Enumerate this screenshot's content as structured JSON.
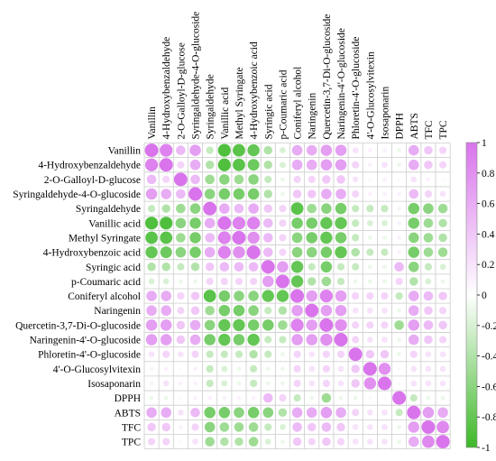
{
  "chart_data": {
    "type": "heatmap",
    "title": "",
    "variables": [
      "Vanillin",
      "4-Hydroxybenzaldehyde",
      "2-O-Galloyl-D-glucose",
      "Syringaldehyde-4-O-glucoside",
      "Syringaldehyde",
      "Vanillic acid",
      "Methyl Syringate",
      "4-Hydroxybenzoic acid",
      "Syringic acid",
      "p-Coumaric acid",
      "Coniferyl alcohol",
      "Naringenin",
      "Quercetin-3,7-Di-O-glucoside",
      "Naringenin-4'-O-glucoside",
      "Phloretin-4'-O-glucoside",
      "4'-O-Glucosylvitexin",
      "Isosaponarin",
      "DPPH",
      "ABTS",
      "TFC",
      "TPC"
    ],
    "values": [
      [
        1,
        0.9,
        0.5,
        0.7,
        -0.3,
        -0.9,
        -0.85,
        -0.8,
        -0.4,
        -0.2,
        0.6,
        0.6,
        0.7,
        0.7,
        0.2,
        0.1,
        0.1,
        -0.1,
        0.6,
        0.4,
        0.3
      ],
      [
        0.9,
        1,
        0.3,
        0.6,
        -0.4,
        -0.9,
        -0.85,
        -0.75,
        -0.4,
        -0.2,
        0.6,
        0.6,
        0.7,
        0.7,
        0.3,
        0.1,
        0.2,
        -0.1,
        0.6,
        0.4,
        0.3
      ],
      [
        0.5,
        0.3,
        1,
        0.5,
        -0.5,
        -0.6,
        -0.5,
        -0.6,
        -0.3,
        -0.1,
        0.3,
        0.3,
        0.4,
        0.4,
        0.2,
        0.05,
        0.1,
        0.05,
        0.2,
        0.1,
        0.05
      ],
      [
        0.7,
        0.6,
        0.5,
        1,
        -0.6,
        -0.7,
        -0.7,
        -0.7,
        -0.4,
        -0.1,
        0.4,
        0.4,
        0.6,
        0.6,
        0.3,
        0.1,
        0.1,
        0.1,
        0.5,
        0.3,
        0.2
      ],
      [
        -0.3,
        -0.4,
        -0.5,
        -0.6,
        1,
        0.6,
        0.5,
        0.6,
        0.4,
        0.3,
        -0.85,
        -0.5,
        -0.6,
        -0.7,
        -0.3,
        -0.3,
        -0.3,
        0.1,
        -0.7,
        -0.6,
        -0.5
      ],
      [
        -0.9,
        -0.9,
        -0.6,
        -0.7,
        0.6,
        1,
        0.9,
        0.9,
        0.5,
        0.3,
        -0.7,
        -0.7,
        -0.8,
        -0.8,
        -0.3,
        -0.2,
        -0.2,
        0.1,
        -0.7,
        -0.5,
        -0.4
      ],
      [
        -0.85,
        -0.85,
        -0.5,
        -0.7,
        0.5,
        0.9,
        1,
        0.8,
        0.5,
        0.3,
        -0.6,
        -0.7,
        -0.8,
        -0.7,
        -0.3,
        -0.1,
        -0.1,
        0.1,
        -0.6,
        -0.5,
        -0.4
      ],
      [
        -0.8,
        -0.75,
        -0.6,
        -0.7,
        0.6,
        0.9,
        0.8,
        1,
        0.5,
        0.3,
        -0.6,
        -0.6,
        -0.7,
        -0.8,
        -0.4,
        -0.3,
        -0.3,
        0.1,
        -0.7,
        -0.5,
        -0.5
      ],
      [
        -0.4,
        -0.4,
        -0.3,
        -0.4,
        0.4,
        0.5,
        0.5,
        0.5,
        1,
        0.7,
        -0.8,
        -0.3,
        -0.7,
        -0.3,
        -0.3,
        -0.1,
        -0.1,
        0.5,
        -0.6,
        -0.3,
        -0.2
      ],
      [
        -0.2,
        -0.2,
        -0.1,
        -0.1,
        0.3,
        0.3,
        0.3,
        0.3,
        0.7,
        1,
        -0.8,
        -0.4,
        -0.5,
        -0.3,
        -0.1,
        -0.1,
        -0.1,
        0.3,
        -0.4,
        -0.2,
        -0.1
      ],
      [
        0.6,
        0.6,
        0.3,
        0.4,
        -0.85,
        -0.7,
        -0.6,
        -0.6,
        -0.8,
        -0.8,
        1,
        0.7,
        0.9,
        0.7,
        0.3,
        0.3,
        0.3,
        -0.3,
        0.6,
        0.5,
        0.4
      ],
      [
        0.6,
        0.6,
        0.3,
        0.4,
        -0.5,
        -0.7,
        -0.7,
        -0.6,
        -0.3,
        -0.4,
        0.7,
        1,
        0.7,
        0.7,
        0.2,
        0.2,
        0.2,
        -0.1,
        0.6,
        0.4,
        0.3
      ],
      [
        0.7,
        0.7,
        0.4,
        0.6,
        -0.6,
        -0.8,
        -0.8,
        -0.7,
        -0.7,
        -0.5,
        0.9,
        0.7,
        1,
        0.8,
        0.3,
        0.3,
        0.3,
        -0.5,
        0.7,
        0.5,
        0.4
      ],
      [
        0.7,
        0.7,
        0.4,
        0.6,
        -0.7,
        -0.8,
        -0.7,
        -0.8,
        -0.3,
        -0.3,
        0.7,
        0.7,
        0.8,
        1,
        0.3,
        0.2,
        0.2,
        -0.1,
        0.6,
        0.4,
        0.3
      ],
      [
        0.2,
        0.3,
        0.2,
        0.3,
        -0.3,
        -0.3,
        -0.3,
        -0.4,
        -0.3,
        -0.1,
        0.3,
        0.2,
        0.3,
        0.3,
        1,
        0.4,
        0.4,
        -0.1,
        0.3,
        0.2,
        0.2
      ],
      [
        0.1,
        0.1,
        0.05,
        0.1,
        -0.3,
        -0.2,
        -0.1,
        -0.3,
        -0.1,
        -0.1,
        0.3,
        0.2,
        0.3,
        0.2,
        0.4,
        1,
        0.8,
        -0.05,
        0.2,
        0.2,
        0.2
      ],
      [
        0.1,
        0.2,
        0.1,
        0.1,
        -0.3,
        -0.2,
        -0.1,
        -0.3,
        -0.1,
        -0.1,
        0.3,
        0.2,
        0.3,
        0.2,
        0.4,
        0.8,
        1,
        -0.05,
        0.2,
        0.2,
        0.2
      ],
      [
        -0.1,
        -0.1,
        0.05,
        0.1,
        0.1,
        0.1,
        0.1,
        0.1,
        0.5,
        0.3,
        -0.3,
        -0.1,
        -0.5,
        -0.1,
        -0.1,
        -0.05,
        -0.05,
        1,
        -0.3,
        -0.1,
        -0.1
      ],
      [
        0.6,
        0.6,
        0.2,
        0.5,
        -0.7,
        -0.7,
        -0.6,
        -0.7,
        -0.6,
        -0.4,
        0.6,
        0.6,
        0.7,
        0.6,
        0.3,
        0.2,
        0.2,
        -0.3,
        1,
        0.7,
        0.6
      ],
      [
        0.4,
        0.4,
        0.1,
        0.3,
        -0.6,
        -0.5,
        -0.5,
        -0.5,
        -0.3,
        -0.2,
        0.5,
        0.4,
        0.5,
        0.4,
        0.2,
        0.2,
        0.2,
        -0.1,
        0.7,
        1,
        0.85
      ],
      [
        0.3,
        0.3,
        0.05,
        0.2,
        -0.5,
        -0.4,
        -0.4,
        -0.5,
        -0.2,
        -0.1,
        0.4,
        0.3,
        0.4,
        0.3,
        0.2,
        0.2,
        0.2,
        -0.1,
        0.6,
        0.85,
        1
      ]
    ],
    "color_scale": {
      "min": -1,
      "max": 1,
      "low_color": "#3db829",
      "mid_color": "#ffffff",
      "high_color": "#d974ec"
    },
    "colorbar_ticks": [
      "1",
      "0.8",
      "0.6",
      "0.4",
      "0.2",
      "0",
      "-0.2",
      "-0.4",
      "-0.6",
      "-0.8",
      "-1"
    ],
    "grid": true,
    "legend": "right"
  }
}
